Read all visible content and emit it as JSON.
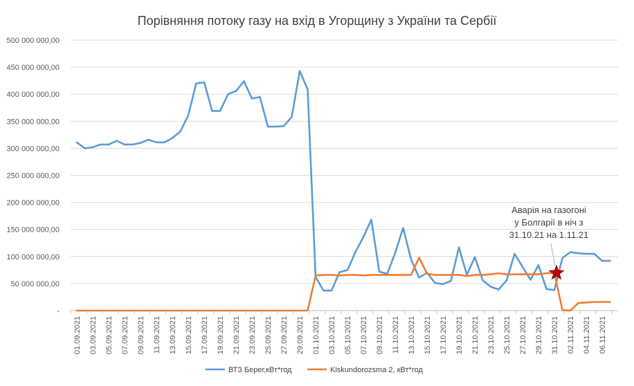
{
  "chart_data": {
    "type": "line",
    "title": "Порівняння потоку газу на вхід в Угорщину з України та Сербії",
    "ylim": [
      0,
      500000000
    ],
    "y_ticks": [
      {
        "value": 500000000,
        "label": "500 000 000,00"
      },
      {
        "value": 450000000,
        "label": "450 000 000,00"
      },
      {
        "value": 400000000,
        "label": "400 000 000,00"
      },
      {
        "value": 350000000,
        "label": "350 000 000,00"
      },
      {
        "value": 300000000,
        "label": "300 000 000,00"
      },
      {
        "value": 250000000,
        "label": "250 000 000,00"
      },
      {
        "value": 200000000,
        "label": "200 000 000,00"
      },
      {
        "value": 150000000,
        "label": "150 000 000,00"
      },
      {
        "value": 100000000,
        "label": "100 000 000,00"
      },
      {
        "value": 50000000,
        "label": "50 000 000,00"
      },
      {
        "value": 0,
        "label": "-"
      }
    ],
    "x_tick_labels": [
      "01.09.2021",
      "03.09.2021",
      "05.09.2021",
      "07.09.2021",
      "09.09.2021",
      "11.09.2021",
      "13.09.2021",
      "15.09.2021",
      "17.09.2021",
      "19.09.2021",
      "21.09.2021",
      "23.09.2021",
      "25.09.2021",
      "27.09.2021",
      "29.09.2021",
      "01.10.2021",
      "03.10.2021",
      "05.10.2021",
      "07.10.2021",
      "09.10.2021",
      "11.10.2021",
      "13.10.2021",
      "15.10.2021",
      "17.10.2021",
      "19.10.2021",
      "21.10.2021",
      "23.10.2021",
      "25.10.2021",
      "27.10.2021",
      "29.10.2021",
      "31.10.2021",
      "02.11.2021",
      "04.11.2021",
      "06.11.2021"
    ],
    "x_start": "01.09.2021",
    "x_end": "07.11.2021",
    "series": [
      {
        "name": "ВТЗ Берег,кВт*год",
        "color": "#5B9BD5",
        "values": [
          311000000,
          300000000,
          302000000,
          307000000,
          307000000,
          314000000,
          307000000,
          307000000,
          310000000,
          316000000,
          311000000,
          311000000,
          319000000,
          331000000,
          361000000,
          420000000,
          422000000,
          369000000,
          369000000,
          400000000,
          406000000,
          424000000,
          392000000,
          395000000,
          340000000,
          340000000,
          341000000,
          358000000,
          443000000,
          409000000,
          62000000,
          37000000,
          37000000,
          71000000,
          75000000,
          108000000,
          136000000,
          168000000,
          72000000,
          68000000,
          107000000,
          153000000,
          94000000,
          61000000,
          70000000,
          51000000,
          49000000,
          55000000,
          117000000,
          66000000,
          99000000,
          56000000,
          44000000,
          39000000,
          56000000,
          105000000,
          81000000,
          57000000,
          84000000,
          40000000,
          38000000,
          97000000,
          108000000,
          106000000,
          105000000,
          105000000,
          92000000,
          92000000
        ]
      },
      {
        "name": "Kiskundorozsma 2, кВт*год",
        "color": "#ED7D31",
        "values": [
          0,
          0,
          0,
          0,
          0,
          0,
          0,
          0,
          0,
          0,
          0,
          0,
          0,
          0,
          0,
          0,
          0,
          0,
          0,
          0,
          0,
          0,
          0,
          0,
          0,
          0,
          0,
          0,
          0,
          0,
          65000000,
          66000000,
          66000000,
          65000000,
          66000000,
          66000000,
          65000000,
          66000000,
          66000000,
          66000000,
          66000000,
          66000000,
          66000000,
          98000000,
          68000000,
          66000000,
          66000000,
          66000000,
          66000000,
          64000000,
          66000000,
          66000000,
          67000000,
          69000000,
          67000000,
          67000000,
          67000000,
          67000000,
          67000000,
          69000000,
          70000000,
          1000000,
          0,
          14000000,
          15000000,
          16000000,
          16000000,
          16000000
        ]
      }
    ],
    "annotation": {
      "lines": [
        "Аварія на газогоні",
        "у Болгарії в ніч з",
        "31.10.21 на 1.11.21"
      ],
      "marker": "star",
      "marker_color": "#C00000",
      "marker_date_index": 60,
      "marker_value": 67000000
    },
    "legend_position": "bottom",
    "grid": true
  }
}
